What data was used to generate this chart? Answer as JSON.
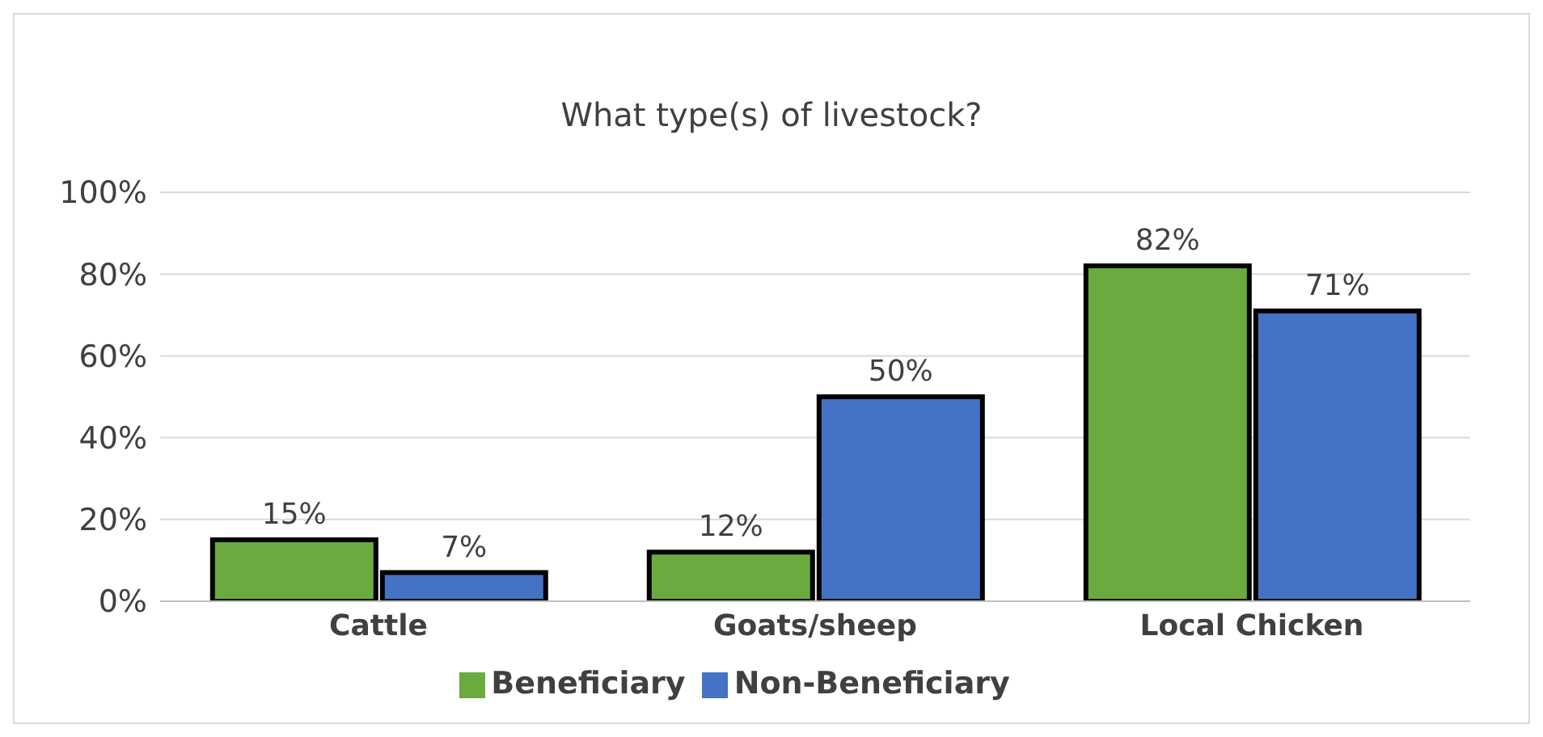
{
  "chart_data": {
    "type": "bar",
    "title": "What type(s) of livestock?",
    "categories": [
      "Cattle",
      "Goats/sheep",
      "Local Chicken"
    ],
    "series": [
      {
        "name": "Beneficiary",
        "color": "#6aaa3f",
        "values": [
          15,
          12,
          82
        ],
        "value_labels": [
          "15%",
          "12%",
          "82%"
        ]
      },
      {
        "name": "Non-Beneficiary",
        "color": "#4472c4",
        "values": [
          7,
          50,
          71
        ],
        "value_labels": [
          "7%",
          "50%",
          "71%"
        ]
      }
    ],
    "ylim": [
      0,
      100
    ],
    "yticks": [
      {
        "value": 0,
        "label": "0%"
      },
      {
        "value": 20,
        "label": "20%"
      },
      {
        "value": 40,
        "label": "40%"
      },
      {
        "value": 60,
        "label": "60%"
      },
      {
        "value": 80,
        "label": "80%"
      },
      {
        "value": 100,
        "label": "100%"
      }
    ],
    "grid": "y",
    "legend": "bottom"
  }
}
